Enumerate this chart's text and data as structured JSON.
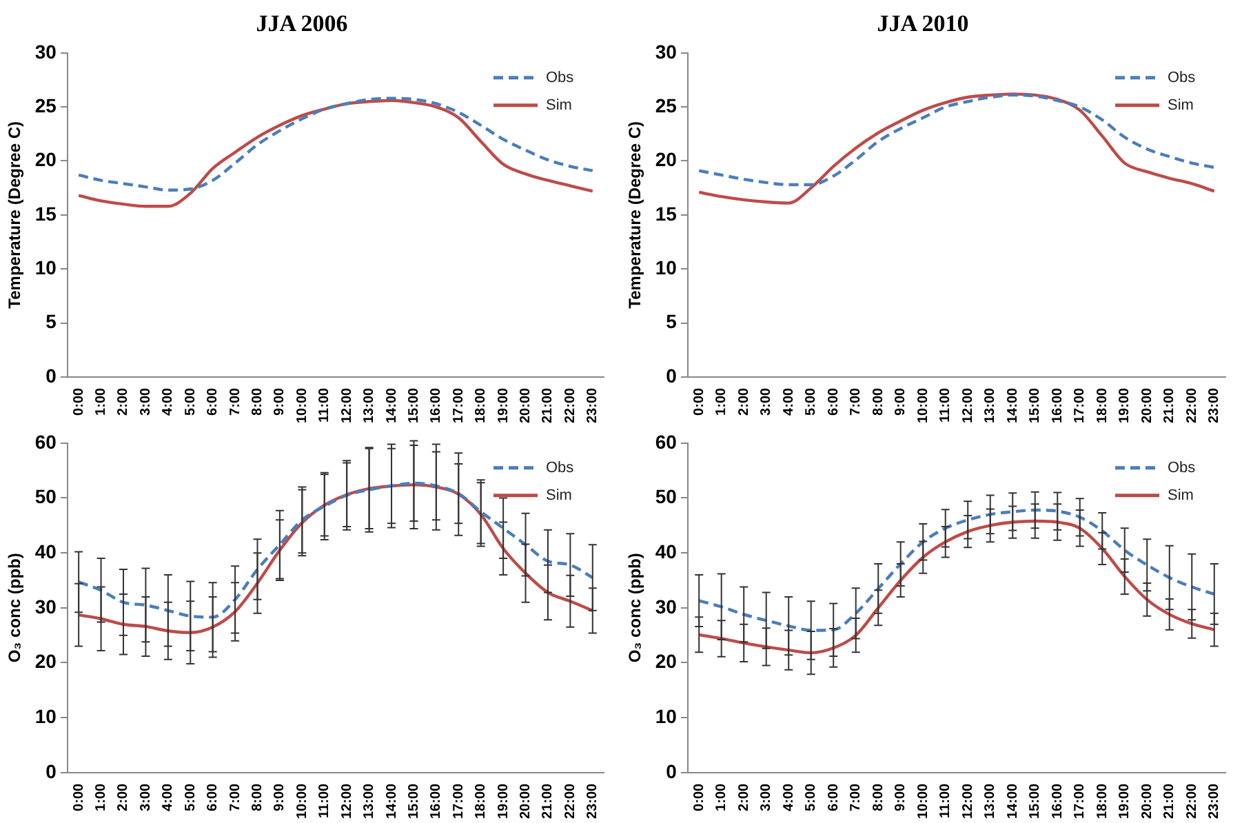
{
  "chart_data": [
    {
      "type": "line",
      "title": "JJA 2006",
      "ylabel": "Temperature (Degree C)",
      "categories": [
        "0:00",
        "1:00",
        "2:00",
        "3:00",
        "4:00",
        "5:00",
        "6:00",
        "7:00",
        "8:00",
        "9:00",
        "10:00",
        "11:00",
        "12:00",
        "13:00",
        "14:00",
        "15:00",
        "16:00",
        "17:00",
        "18:00",
        "19:00",
        "20:00",
        "21:00",
        "22:00",
        "23:00"
      ],
      "ylim": [
        0,
        30
      ],
      "yticks": [
        0,
        5,
        10,
        15,
        20,
        25,
        30
      ],
      "legend": "top right",
      "grid": false,
      "marker": "none",
      "series": [
        {
          "name": "Obs",
          "color": "#4a7ebb",
          "line_style": "dashed",
          "values": [
            18.7,
            18.2,
            17.9,
            17.6,
            17.3,
            17.4,
            18.2,
            19.8,
            21.5,
            22.8,
            23.9,
            24.8,
            25.3,
            25.7,
            25.8,
            25.7,
            25.3,
            24.5,
            23.3,
            22,
            21,
            20.1,
            19.5,
            19.1
          ]
        },
        {
          "name": "Sim",
          "color": "#be4b48",
          "line_style": "solid",
          "values": [
            16.8,
            16.3,
            16,
            15.8,
            15.8,
            17,
            19.3,
            20.8,
            22.2,
            23.3,
            24.2,
            24.8,
            25.3,
            25.5,
            25.6,
            25.4,
            25,
            24,
            21.8,
            19.7,
            18.8,
            18.2,
            17.7,
            17.2
          ]
        }
      ]
    },
    {
      "type": "line",
      "title": "JJA 2010",
      "ylabel": "Temperature (Degree C)",
      "categories": [
        "0:00",
        "1:00",
        "2:00",
        "3:00",
        "4:00",
        "5:00",
        "6:00",
        "7:00",
        "8:00",
        "9:00",
        "10:00",
        "11:00",
        "12:00",
        "13:00",
        "14:00",
        "15:00",
        "16:00",
        "17:00",
        "18:00",
        "19:00",
        "20:00",
        "21:00",
        "22:00",
        "23:00"
      ],
      "ylim": [
        0,
        30
      ],
      "yticks": [
        0,
        5,
        10,
        15,
        20,
        25,
        30
      ],
      "legend": "top right",
      "grid": false,
      "marker": "none",
      "series": [
        {
          "name": "Obs",
          "color": "#4a7ebb",
          "line_style": "dashed",
          "values": [
            19.1,
            18.7,
            18.3,
            18,
            17.8,
            17.8,
            18.6,
            20.1,
            21.8,
            23,
            24,
            25,
            25.5,
            25.9,
            26.1,
            26,
            25.6,
            25,
            23.8,
            22.2,
            21.1,
            20.4,
            19.8,
            19.4
          ]
        },
        {
          "name": "Sim",
          "color": "#be4b48",
          "line_style": "solid",
          "values": [
            17.1,
            16.7,
            16.4,
            16.2,
            16.1,
            17.5,
            19.5,
            21.2,
            22.6,
            23.7,
            24.7,
            25.4,
            25.9,
            26.1,
            26.2,
            26.1,
            25.7,
            24.7,
            22.3,
            19.8,
            19,
            18.4,
            17.9,
            17.2
          ]
        }
      ]
    },
    {
      "type": "line",
      "ylabel": "O₃ conc (ppb)",
      "categories": [
        "0:00",
        "1:00",
        "2:00",
        "3:00",
        "4:00",
        "5:00",
        "6:00",
        "7:00",
        "8:00",
        "9:00",
        "10:00",
        "11:00",
        "12:00",
        "13:00",
        "14:00",
        "15:00",
        "16:00",
        "17:00",
        "18:00",
        "19:00",
        "20:00",
        "21:00",
        "22:00",
        "23:00"
      ],
      "ylim": [
        0,
        60
      ],
      "yticks": [
        0,
        10,
        20,
        30,
        40,
        50,
        60
      ],
      "legend": "top right",
      "grid": false,
      "marker": "none",
      "series": [
        {
          "name": "Obs",
          "color": "#4a7ebb",
          "line_style": "dashed",
          "values": [
            34.7,
            33.2,
            31,
            30.5,
            29.5,
            28.5,
            28.3,
            31.5,
            37,
            41.5,
            46,
            48.5,
            50.5,
            51.5,
            52.2,
            52.7,
            52.2,
            50.8,
            47.5,
            44.5,
            41.5,
            38.5,
            37.8,
            35.5
          ],
          "errors": [
            5.5,
            5.8,
            6,
            6.7,
            6.5,
            6.3,
            6.3,
            6.1,
            5.5,
            6.2,
            6,
            6.1,
            6.3,
            7.7,
            7.6,
            6.9,
            6.2,
            5.4,
            5.8,
            5.5,
            5.7,
            5.7,
            5.7,
            6
          ]
        },
        {
          "name": "Sim",
          "color": "#be4b48",
          "line_style": "solid",
          "values": [
            28.7,
            28,
            27,
            26.6,
            25.8,
            25.5,
            26.5,
            29.3,
            34.5,
            40.5,
            45.5,
            48.7,
            50.6,
            51.7,
            52.2,
            52.4,
            52,
            50.7,
            47,
            40.8,
            36.3,
            32.8,
            31.2,
            29.5
          ],
          "errors": [
            5.7,
            5.8,
            5.5,
            5.4,
            5.2,
            5.7,
            5.5,
            5.3,
            5.5,
            5.5,
            6,
            5.6,
            5.8,
            7.3,
            6.8,
            8,
            7.8,
            7.5,
            5.8,
            4.8,
            5.3,
            5,
            4.7,
            4.1
          ]
        }
      ]
    },
    {
      "type": "line",
      "ylabel": "O₃ conc (ppb)",
      "categories": [
        "0:00",
        "1:00",
        "2:00",
        "3:00",
        "4:00",
        "5:00",
        "6:00",
        "7:00",
        "8:00",
        "9:00",
        "10:00",
        "11:00",
        "12:00",
        "13:00",
        "14:00",
        "15:00",
        "16:00",
        "17:00",
        "18:00",
        "19:00",
        "20:00",
        "21:00",
        "22:00",
        "23:00"
      ],
      "ylim": [
        0,
        60
      ],
      "yticks": [
        0,
        10,
        20,
        30,
        40,
        50,
        60
      ],
      "legend": "top right",
      "grid": false,
      "marker": "none",
      "series": [
        {
          "name": "Obs",
          "color": "#4a7ebb",
          "line_style": "dashed",
          "values": [
            31.3,
            30.2,
            28.8,
            27.7,
            26.7,
            25.9,
            26,
            29,
            33.5,
            38,
            42,
            44.5,
            46,
            47,
            47.5,
            47.8,
            47.6,
            46.5,
            44,
            40.5,
            37.8,
            35.5,
            33.8,
            32.5
          ],
          "errors": [
            4.7,
            6,
            5,
            5.1,
            5.3,
            5.3,
            4.8,
            4.6,
            4.5,
            4,
            3.3,
            3.4,
            3.4,
            3.5,
            3.4,
            3.3,
            3.4,
            3.4,
            3.3,
            4,
            4.7,
            5.8,
            6,
            5.5
          ]
        },
        {
          "name": "Sim",
          "color": "#be4b48",
          "line_style": "solid",
          "values": [
            25.1,
            24.4,
            23.6,
            22.9,
            22.3,
            21.8,
            22.7,
            25,
            30,
            35,
            39.2,
            42,
            43.9,
            45,
            45.6,
            45.8,
            45.6,
            44.5,
            40.8,
            35.7,
            31.5,
            28.8,
            27.1,
            26
          ],
          "errors": [
            3.2,
            3.3,
            3.4,
            3.4,
            3.6,
            3.9,
            3.5,
            3.1,
            3.2,
            3,
            2.9,
            2.8,
            2.9,
            3,
            2.9,
            3.1,
            3.3,
            3.3,
            2.9,
            3.2,
            3,
            2.8,
            2.6,
            3
          ]
        }
      ]
    }
  ]
}
